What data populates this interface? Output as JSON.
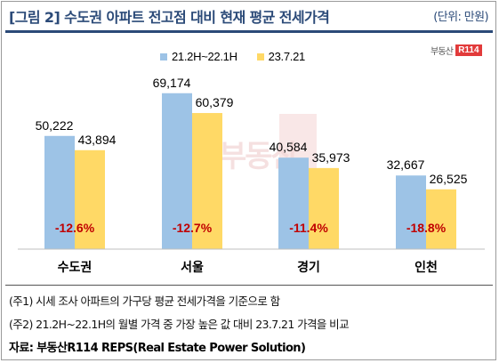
{
  "header": {
    "title": "[그림 2] 수도권 아파트 전고점 대비 현재 평균 전세가격",
    "unit": "(단위: 만원)"
  },
  "logo": {
    "text": "부동산",
    "badge": "R114"
  },
  "watermark": {
    "text": "부동산"
  },
  "colors": {
    "series1": "#9dc3e6",
    "series2": "#ffd966",
    "change": "#c00000",
    "accent": "#2b4a78"
  },
  "chart_data": {
    "type": "bar",
    "categories": [
      "수도권",
      "서울",
      "경기",
      "인천"
    ],
    "series": [
      {
        "name": "21.2H~22.1H",
        "values": [
          50222,
          69174,
          40584,
          32667
        ],
        "labels": [
          "50,222",
          "69,174",
          "40,584",
          "32,667"
        ]
      },
      {
        "name": "23.7.21",
        "values": [
          43894,
          60379,
          35973,
          26525
        ],
        "labels": [
          "43,894",
          "60,379",
          "35,973",
          "26,525"
        ]
      }
    ],
    "changes": [
      "-12.6%",
      "-12.7%",
      "-11.4%",
      "-18.8%"
    ],
    "ylim": [
      0,
      75000
    ],
    "legend_position": "top",
    "grid": false
  },
  "notes": {
    "note1": "(주1) 시세 조사 아파트의 가구당 평균 전세가격을 기준으로 함",
    "note2": "(주2) 21.2H~22.1H의 월별 가격 중 가장 높은 값 대비 23.7.21 가격을 비교",
    "source": "자료: 부동산R114 REPS(Real Estate Power Solution)"
  }
}
